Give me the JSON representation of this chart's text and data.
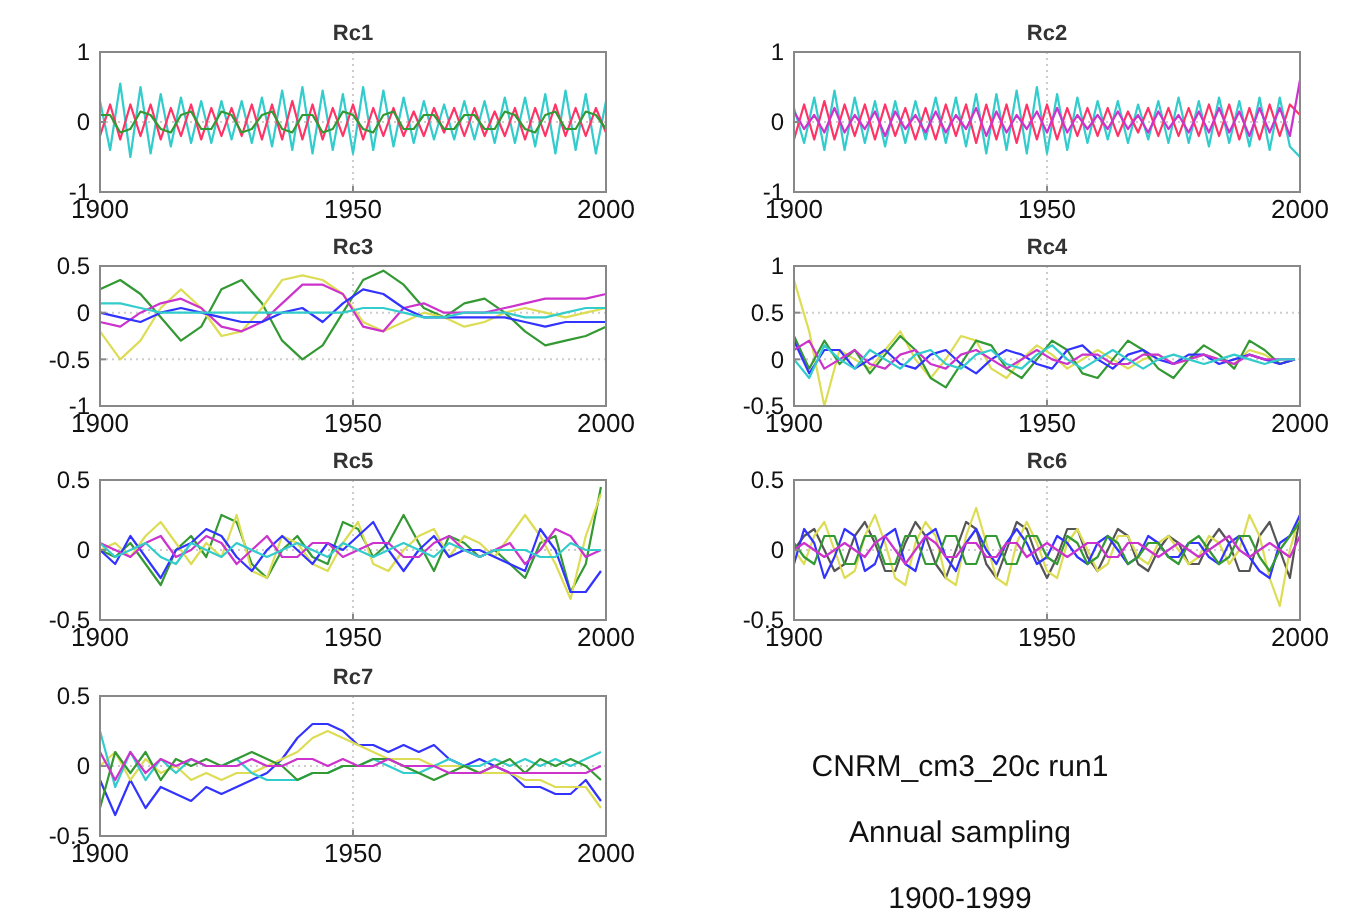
{
  "chart_data": [
    {
      "type": "line",
      "title": "Rc1",
      "xlim": [
        1900,
        2000
      ],
      "xticks": [
        1900,
        1950,
        2000
      ],
      "ylim": [
        -1,
        1
      ],
      "yticks": [
        -1,
        0,
        1
      ],
      "grid": true,
      "x": [
        1900,
        1902,
        1904,
        1906,
        1908,
        1910,
        1912,
        1914,
        1916,
        1918,
        1920,
        1922,
        1924,
        1926,
        1928,
        1930,
        1932,
        1934,
        1936,
        1938,
        1940,
        1942,
        1944,
        1946,
        1948,
        1950,
        1952,
        1954,
        1956,
        1958,
        1960,
        1962,
        1964,
        1966,
        1968,
        1970,
        1972,
        1974,
        1976,
        1978,
        1980,
        1982,
        1984,
        1986,
        1988,
        1990,
        1992,
        1994,
        1996,
        1998,
        2000
      ],
      "series": [
        {
          "color": "#33cccc",
          "values": [
            0.3,
            -0.4,
            0.55,
            -0.5,
            0.5,
            -0.45,
            0.4,
            -0.35,
            0.35,
            -0.3,
            0.3,
            -0.3,
            0.3,
            -0.25,
            0.3,
            -0.3,
            0.35,
            -0.35,
            0.45,
            -0.4,
            0.5,
            -0.45,
            0.45,
            -0.4,
            0.4,
            -0.45,
            0.5,
            -0.4,
            0.45,
            -0.35,
            0.35,
            -0.3,
            0.3,
            -0.25,
            0.25,
            -0.25,
            0.3,
            -0.25,
            0.3,
            -0.3,
            0.35,
            -0.3,
            0.35,
            -0.35,
            0.4,
            -0.45,
            0.45,
            -0.4,
            0.4,
            -0.45,
            0.3
          ]
        },
        {
          "color": "#ff3366",
          "values": [
            -0.2,
            0.25,
            -0.25,
            0.25,
            -0.2,
            0.25,
            -0.25,
            0.2,
            -0.2,
            0.25,
            -0.25,
            0.2,
            -0.2,
            0.2,
            -0.2,
            0.25,
            -0.25,
            0.25,
            -0.25,
            0.3,
            -0.25,
            0.25,
            -0.25,
            0.2,
            -0.2,
            0.25,
            -0.25,
            0.2,
            -0.2,
            0.2,
            -0.2,
            0.15,
            -0.2,
            0.2,
            -0.15,
            0.2,
            -0.2,
            0.2,
            -0.2,
            0.15,
            -0.2,
            0.2,
            -0.25,
            0.2,
            -0.2,
            0.25,
            -0.2,
            0.2,
            -0.2,
            0.2,
            -0.15
          ]
        },
        {
          "color": "#339933",
          "values": [
            0.1,
            0.1,
            -0.15,
            -0.1,
            0.15,
            0.1,
            -0.1,
            -0.15,
            0.1,
            0.15,
            -0.1,
            -0.1,
            0.15,
            0.1,
            -0.15,
            -0.1,
            0.1,
            0.15,
            -0.1,
            -0.15,
            0.1,
            0.1,
            -0.15,
            -0.1,
            0.15,
            0.1,
            -0.1,
            -0.15,
            0.1,
            0.15,
            -0.1,
            -0.1,
            0.1,
            0.1,
            -0.1,
            -0.1,
            0.1,
            0.1,
            -0.1,
            -0.1,
            0.15,
            0.1,
            -0.1,
            -0.15,
            0.1,
            0.15,
            -0.1,
            -0.1,
            0.15,
            0.1,
            -0.1
          ]
        }
      ]
    },
    {
      "type": "line",
      "title": "Rc2",
      "xlim": [
        1900,
        2000
      ],
      "xticks": [
        1900,
        1950,
        2000
      ],
      "ylim": [
        -1,
        1
      ],
      "yticks": [
        -1,
        0,
        1
      ],
      "grid": true,
      "x": [
        1900,
        1902,
        1904,
        1906,
        1908,
        1910,
        1912,
        1914,
        1916,
        1918,
        1920,
        1922,
        1924,
        1926,
        1928,
        1930,
        1932,
        1934,
        1936,
        1938,
        1940,
        1942,
        1944,
        1946,
        1948,
        1950,
        1952,
        1954,
        1956,
        1958,
        1960,
        1962,
        1964,
        1966,
        1968,
        1970,
        1972,
        1974,
        1976,
        1978,
        1980,
        1982,
        1984,
        1986,
        1988,
        1990,
        1992,
        1994,
        1996,
        1998,
        2000
      ],
      "series": [
        {
          "color": "#33cccc",
          "values": [
            0.2,
            -0.3,
            0.35,
            -0.4,
            0.45,
            -0.4,
            0.35,
            -0.3,
            0.3,
            -0.35,
            0.3,
            -0.3,
            0.3,
            -0.25,
            0.35,
            -0.3,
            0.35,
            -0.35,
            0.4,
            -0.45,
            0.4,
            -0.4,
            0.45,
            -0.45,
            0.5,
            -0.45,
            0.4,
            -0.4,
            0.35,
            -0.3,
            0.3,
            -0.25,
            0.3,
            -0.3,
            0.25,
            -0.25,
            0.3,
            -0.3,
            0.35,
            -0.3,
            0.3,
            -0.35,
            0.35,
            -0.3,
            0.3,
            -0.35,
            0.35,
            -0.4,
            0.35,
            -0.35,
            -0.5
          ]
        },
        {
          "color": "#ff3366",
          "values": [
            -0.25,
            0.25,
            -0.25,
            0.3,
            -0.25,
            0.25,
            -0.2,
            0.25,
            -0.25,
            0.25,
            -0.2,
            0.2,
            -0.25,
            0.2,
            -0.25,
            0.25,
            -0.2,
            0.25,
            -0.3,
            0.25,
            -0.25,
            0.25,
            -0.3,
            0.25,
            -0.25,
            0.25,
            -0.25,
            0.2,
            -0.2,
            0.2,
            -0.2,
            0.2,
            -0.2,
            0.15,
            -0.15,
            0.2,
            -0.2,
            0.2,
            -0.2,
            0.2,
            -0.2,
            0.25,
            -0.2,
            0.25,
            -0.25,
            0.2,
            -0.25,
            0.25,
            -0.2,
            0.25,
            0.1
          ]
        },
        {
          "color": "#cc33cc",
          "values": [
            0.15,
            -0.1,
            0.1,
            -0.15,
            0.2,
            -0.15,
            0.1,
            -0.1,
            0.15,
            -0.2,
            0.15,
            -0.1,
            0.1,
            -0.15,
            0.15,
            -0.15,
            0.1,
            -0.1,
            0.2,
            -0.2,
            0.15,
            -0.15,
            0.1,
            -0.1,
            0.15,
            -0.15,
            0.2,
            -0.15,
            0.1,
            -0.1,
            0.1,
            -0.1,
            0.15,
            -0.1,
            0.1,
            -0.15,
            0.15,
            -0.1,
            0.1,
            -0.15,
            0.15,
            -0.15,
            0.2,
            -0.15,
            0.15,
            -0.2,
            0.2,
            -0.15,
            0.2,
            -0.2,
            0.6
          ]
        }
      ]
    },
    {
      "type": "line",
      "title": "Rc3",
      "xlim": [
        1900,
        2000
      ],
      "xticks": [
        1900,
        1950,
        2000
      ],
      "ylim": [
        -1,
        0.5
      ],
      "yticks": [
        -1,
        -0.5,
        0,
        0.5
      ],
      "grid": true,
      "x": [
        1900,
        1904,
        1908,
        1912,
        1916,
        1920,
        1924,
        1928,
        1932,
        1936,
        1940,
        1944,
        1948,
        1952,
        1956,
        1960,
        1964,
        1968,
        1972,
        1976,
        1980,
        1984,
        1988,
        1992,
        1996,
        2000
      ],
      "series": [
        {
          "color": "#339933",
          "values": [
            0.25,
            0.35,
            0.2,
            -0.05,
            -0.3,
            -0.15,
            0.25,
            0.35,
            0.1,
            -0.3,
            -0.5,
            -0.35,
            0,
            0.35,
            0.45,
            0.3,
            0.05,
            -0.05,
            0.1,
            0.15,
            0,
            -0.2,
            -0.35,
            -0.3,
            -0.25,
            -0.15
          ]
        },
        {
          "color": "#dddd55",
          "values": [
            -0.2,
            -0.5,
            -0.3,
            0.05,
            0.25,
            0.05,
            -0.25,
            -0.2,
            0.05,
            0.35,
            0.4,
            0.35,
            0.2,
            -0.1,
            -0.2,
            -0.1,
            0,
            -0.05,
            -0.15,
            -0.1,
            0,
            0.05,
            0,
            -0.05,
            0,
            0.05
          ]
        },
        {
          "color": "#cc33cc",
          "values": [
            -0.1,
            -0.15,
            0,
            0.1,
            0.15,
            0.05,
            -0.15,
            -0.2,
            -0.1,
            0.1,
            0.3,
            0.3,
            0.2,
            -0.15,
            -0.2,
            0.05,
            0.1,
            0,
            0,
            0,
            0.05,
            0.1,
            0.15,
            0.15,
            0.15,
            0.2
          ]
        },
        {
          "color": "#3333ff",
          "values": [
            0,
            -0.05,
            -0.1,
            0,
            0.05,
            0,
            -0.05,
            -0.1,
            -0.1,
            0,
            0.05,
            -0.1,
            0.1,
            0.25,
            0.2,
            0.05,
            -0.05,
            -0.05,
            -0.05,
            -0.05,
            -0.05,
            -0.1,
            -0.15,
            -0.1,
            -0.1,
            -0.1
          ]
        },
        {
          "color": "#33cccc",
          "values": [
            0.1,
            0.1,
            0.05,
            0,
            0,
            0,
            0,
            0,
            0,
            0,
            0,
            0,
            0,
            0.05,
            0.05,
            0,
            -0.05,
            -0.05,
            0,
            0,
            0,
            -0.05,
            -0.05,
            0,
            0.05,
            0.05
          ]
        }
      ]
    },
    {
      "type": "line",
      "title": "Rc4",
      "xlim": [
        1900,
        2000
      ],
      "xticks": [
        1900,
        1950,
        2000
      ],
      "ylim": [
        -0.5,
        1
      ],
      "yticks": [
        -0.5,
        0,
        0.5,
        1
      ],
      "grid": true,
      "x": [
        1900,
        1903,
        1906,
        1909,
        1912,
        1915,
        1918,
        1921,
        1924,
        1927,
        1930,
        1933,
        1936,
        1939,
        1942,
        1945,
        1948,
        1951,
        1954,
        1957,
        1960,
        1963,
        1966,
        1969,
        1972,
        1975,
        1978,
        1981,
        1984,
        1987,
        1990,
        1993,
        1996,
        1999
      ],
      "series": [
        {
          "color": "#dddd55",
          "values": [
            0.85,
            0.3,
            -0.5,
            0.1,
            0,
            -0.1,
            0.1,
            0.3,
            0,
            -0.2,
            0,
            0.25,
            0.2,
            -0.1,
            -0.2,
            0,
            0.15,
            0.05,
            -0.1,
            0,
            0.1,
            0,
            -0.1,
            0,
            0.05,
            -0.05,
            0,
            0.05,
            0,
            -0.05,
            0.1,
            0.05,
            -0.05,
            0
          ]
        },
        {
          "color": "#339933",
          "values": [
            0.25,
            -0.1,
            0.2,
            -0.05,
            0.1,
            -0.15,
            0.05,
            0.25,
            0.1,
            -0.2,
            -0.3,
            -0.05,
            0.2,
            0.15,
            -0.1,
            -0.2,
            0,
            0.2,
            0.1,
            -0.15,
            -0.2,
            0,
            0.2,
            0.1,
            -0.1,
            -0.2,
            0,
            0.15,
            0.05,
            -0.1,
            0.2,
            0.1,
            -0.05,
            0
          ]
        },
        {
          "color": "#3333ff",
          "values": [
            0.2,
            -0.15,
            0.1,
            0.1,
            -0.1,
            0,
            0.1,
            -0.05,
            -0.1,
            0.05,
            0.1,
            -0.05,
            -0.15,
            0,
            0.1,
            0.05,
            -0.05,
            -0.1,
            0.1,
            0.15,
            0,
            -0.1,
            0.05,
            0.1,
            0,
            -0.05,
            0.05,
            0.05,
            -0.05,
            0,
            0.05,
            0,
            -0.05,
            0
          ]
        },
        {
          "color": "#cc33cc",
          "values": [
            0.1,
            0.2,
            -0.1,
            0,
            0.1,
            -0.05,
            -0.1,
            0.05,
            0.1,
            -0.05,
            -0.1,
            0.05,
            0.1,
            0,
            -0.1,
            0,
            0.1,
            0,
            -0.05,
            0.05,
            0.05,
            -0.05,
            -0.05,
            0.05,
            0.05,
            -0.05,
            0,
            0.05,
            0,
            -0.05,
            0.05,
            0,
            0,
            0
          ]
        },
        {
          "color": "#33cccc",
          "values": [
            0,
            -0.2,
            0.15,
            0,
            -0.1,
            0.1,
            0,
            -0.1,
            0.05,
            0.1,
            -0.05,
            -0.1,
            0.05,
            0.1,
            -0.05,
            -0.1,
            0.05,
            0.15,
            0,
            -0.1,
            0,
            0.1,
            0,
            -0.1,
            0,
            0.05,
            0,
            -0.05,
            0,
            0.05,
            0,
            -0.05,
            0,
            0
          ]
        }
      ]
    },
    {
      "type": "line",
      "title": "Rc5",
      "xlim": [
        1900,
        2000
      ],
      "xticks": [
        1900,
        1950,
        2000
      ],
      "ylim": [
        -0.5,
        0.5
      ],
      "yticks": [
        -0.5,
        0,
        0.5
      ],
      "grid": true,
      "x": [
        1900,
        1903,
        1906,
        1909,
        1912,
        1915,
        1918,
        1921,
        1924,
        1927,
        1930,
        1933,
        1936,
        1939,
        1942,
        1945,
        1948,
        1951,
        1954,
        1957,
        1960,
        1963,
        1966,
        1969,
        1972,
        1975,
        1978,
        1981,
        1984,
        1987,
        1990,
        1993,
        1996,
        1999
      ],
      "series": [
        {
          "color": "#339933",
          "values": [
            0,
            -0.05,
            0.05,
            -0.1,
            -0.25,
            0,
            0.1,
            -0.05,
            0.25,
            0.2,
            -0.1,
            -0.2,
            0,
            0.1,
            -0.05,
            -0.1,
            0.2,
            0.15,
            -0.05,
            0.05,
            0.25,
            0.05,
            -0.15,
            0.1,
            0.05,
            -0.05,
            0,
            -0.1,
            -0.2,
            0.05,
            0.1,
            -0.3,
            -0.1,
            0.45
          ]
        },
        {
          "color": "#dddd55",
          "values": [
            0,
            0.05,
            -0.05,
            0.1,
            0.2,
            0.05,
            -0.1,
            0.05,
            -0.05,
            0.25,
            -0.15,
            -0.2,
            0.1,
            0.05,
            -0.1,
            -0.15,
            0.05,
            0.2,
            -0.1,
            -0.15,
            0,
            0.1,
            0.15,
            -0.05,
            0.1,
            0.05,
            -0.05,
            0.1,
            0.25,
            0.1,
            -0.1,
            -0.35,
            0.1,
            0.4
          ]
        },
        {
          "color": "#3333ff",
          "values": [
            0,
            -0.1,
            0.1,
            -0.05,
            -0.2,
            0,
            0.05,
            0.15,
            0.1,
            -0.05,
            -0.15,
            0,
            0.1,
            0,
            -0.1,
            0.05,
            0,
            0.1,
            0.2,
            0,
            -0.15,
            0,
            0.1,
            -0.05,
            0,
            0,
            -0.05,
            -0.1,
            -0.15,
            0.15,
            0,
            -0.3,
            -0.3,
            -0.15
          ]
        },
        {
          "color": "#cc33cc",
          "values": [
            0.05,
            0,
            -0.05,
            0.05,
            0.1,
            -0.05,
            0,
            0.1,
            0.05,
            -0.1,
            0,
            0.1,
            -0.05,
            -0.05,
            0.05,
            0.05,
            -0.05,
            0,
            0.05,
            0.05,
            -0.05,
            -0.05,
            0.05,
            0.1,
            0,
            -0.05,
            0,
            0.05,
            -0.1,
            0,
            0.15,
            0.1,
            -0.05,
            0
          ]
        },
        {
          "color": "#33cccc",
          "values": [
            0.05,
            -0.05,
            0,
            0.05,
            -0.05,
            -0.1,
            0.05,
            0,
            -0.05,
            0.05,
            0,
            -0.05,
            0,
            0.05,
            0,
            -0.05,
            0.05,
            0,
            -0.05,
            0,
            0.05,
            0,
            -0.05,
            0.05,
            0,
            -0.05,
            0,
            0,
            0,
            -0.05,
            -0.05,
            0.05,
            0,
            0
          ]
        }
      ]
    },
    {
      "type": "line",
      "title": "Rc6",
      "xlim": [
        1900,
        2000
      ],
      "xticks": [
        1900,
        1950,
        2000
      ],
      "ylim": [
        -0.5,
        0.5
      ],
      "yticks": [
        -0.5,
        0,
        0.5
      ],
      "grid": true,
      "x": [
        1900,
        1902,
        1904,
        1906,
        1908,
        1910,
        1912,
        1914,
        1916,
        1918,
        1920,
        1922,
        1924,
        1926,
        1928,
        1930,
        1932,
        1934,
        1936,
        1938,
        1940,
        1942,
        1944,
        1946,
        1948,
        1950,
        1952,
        1954,
        1956,
        1958,
        1960,
        1962,
        1964,
        1966,
        1968,
        1970,
        1972,
        1974,
        1976,
        1978,
        1980,
        1982,
        1984,
        1986,
        1988,
        1990,
        1992,
        1994,
        1996,
        1998,
        2000
      ],
      "series": [
        {
          "color": "#555555",
          "values": [
            0,
            0.1,
            0.15,
            0,
            -0.15,
            -0.1,
            0.1,
            0.2,
            0.05,
            -0.15,
            -0.15,
            0.05,
            0.2,
            0.1,
            -0.1,
            -0.2,
            0,
            0.2,
            0.15,
            -0.1,
            -0.2,
            0,
            0.2,
            0.15,
            -0.05,
            -0.2,
            -0.05,
            0.15,
            0.15,
            -0.05,
            -0.15,
            0,
            0.15,
            0.1,
            -0.1,
            -0.15,
            0,
            0.1,
            0.05,
            -0.1,
            -0.1,
            0.05,
            0.15,
            0.05,
            -0.15,
            -0.15,
            0.1,
            0.2,
            0,
            -0.2,
            0.25
          ]
        },
        {
          "color": "#dddd55",
          "values": [
            0,
            -0.1,
            0.1,
            0.2,
            0,
            -0.2,
            -0.15,
            0.1,
            0.25,
            0.05,
            -0.2,
            -0.25,
            0.05,
            0.2,
            0.1,
            -0.2,
            -0.25,
            0.1,
            0.3,
            0.05,
            -0.2,
            -0.25,
            0.05,
            0.2,
            0.05,
            -0.15,
            -0.2,
            0.05,
            0.15,
            0,
            -0.15,
            -0.1,
            0.1,
            0.1,
            -0.05,
            -0.1,
            0.05,
            0.1,
            0,
            -0.1,
            -0.05,
            0.1,
            0.05,
            -0.1,
            0,
            0.25,
            0.1,
            -0.2,
            -0.4,
            0,
            0.25
          ]
        },
        {
          "color": "#3333ff",
          "values": [
            -0.1,
            0.15,
            0.05,
            -0.2,
            -0.05,
            0.15,
            0.1,
            -0.15,
            -0.1,
            0.1,
            0.15,
            -0.1,
            -0.15,
            0.1,
            0.15,
            -0.05,
            -0.15,
            0.05,
            0.15,
            0,
            -0.1,
            0.05,
            0.15,
            0.05,
            -0.1,
            -0.05,
            0.1,
            0.05,
            -0.05,
            -0.1,
            0.05,
            0.1,
            0,
            -0.1,
            -0.05,
            0.1,
            0.05,
            -0.05,
            -0.05,
            0.05,
            0.05,
            -0.05,
            -0.1,
            0.05,
            0.1,
            -0.05,
            -0.15,
            -0.2,
            0.05,
            0.1,
            0.25
          ]
        },
        {
          "color": "#339933",
          "values": [
            0.05,
            -0.05,
            -0.1,
            0.1,
            0.1,
            -0.1,
            -0.1,
            0.1,
            0.1,
            -0.1,
            -0.1,
            0.1,
            0.1,
            -0.1,
            -0.1,
            0.1,
            0.1,
            -0.1,
            -0.1,
            0.1,
            0.1,
            -0.1,
            -0.1,
            0.1,
            0.1,
            -0.05,
            -0.1,
            0.1,
            0.05,
            -0.1,
            -0.05,
            0.1,
            0.05,
            -0.1,
            -0.05,
            0.05,
            0.05,
            -0.05,
            -0.1,
            0.05,
            0.1,
            0,
            -0.1,
            -0.05,
            0.1,
            0.1,
            -0.05,
            -0.15,
            0,
            0.1,
            0.2
          ]
        },
        {
          "color": "#cc33cc",
          "values": [
            0,
            0.05,
            0,
            -0.05,
            0,
            0.05,
            0,
            -0.05,
            0.05,
            0.1,
            0,
            -0.1,
            0,
            0.1,
            0.05,
            -0.05,
            -0.05,
            0.05,
            0.05,
            -0.05,
            -0.05,
            0.05,
            0.05,
            -0.05,
            0,
            0.05,
            0,
            -0.05,
            0,
            0.05,
            0.05,
            -0.05,
            -0.05,
            0.05,
            0.05,
            0,
            -0.05,
            0,
            0.05,
            0,
            -0.05,
            0,
            0.05,
            0.1,
            0,
            -0.05,
            0,
            0.05,
            0,
            -0.05,
            0.1
          ]
        }
      ]
    },
    {
      "type": "line",
      "title": "Rc7",
      "xlim": [
        1900,
        2000
      ],
      "xticks": [
        1900,
        1950,
        2000
      ],
      "ylim": [
        -0.5,
        0.5
      ],
      "yticks": [
        -0.5,
        0,
        0.5
      ],
      "grid": true,
      "x": [
        1900,
        1903,
        1906,
        1909,
        1912,
        1915,
        1918,
        1921,
        1924,
        1927,
        1930,
        1933,
        1936,
        1939,
        1942,
        1945,
        1948,
        1951,
        1954,
        1957,
        1960,
        1963,
        1966,
        1969,
        1972,
        1975,
        1978,
        1981,
        1984,
        1987,
        1990,
        1993,
        1996,
        1999
      ],
      "series": [
        {
          "color": "#3333ff",
          "values": [
            -0.1,
            -0.35,
            -0.1,
            -0.3,
            -0.15,
            -0.2,
            -0.25,
            -0.15,
            -0.2,
            -0.15,
            -0.1,
            -0.05,
            0.05,
            0.2,
            0.3,
            0.3,
            0.25,
            0.15,
            0.15,
            0.1,
            0.15,
            0.1,
            0.15,
            0.05,
            0,
            0.05,
            0,
            -0.05,
            -0.15,
            -0.15,
            -0.2,
            -0.2,
            -0.1,
            -0.25
          ]
        },
        {
          "color": "#dddd55",
          "values": [
            0,
            0.1,
            -0.1,
            0.05,
            -0.05,
            0,
            -0.1,
            -0.05,
            -0.1,
            -0.05,
            -0.05,
            0,
            0.05,
            0.1,
            0.2,
            0.25,
            0.2,
            0.15,
            0.1,
            0.05,
            0.05,
            0.05,
            0,
            0,
            0,
            -0.05,
            -0.05,
            -0.05,
            -0.1,
            -0.1,
            -0.15,
            -0.15,
            -0.15,
            -0.3
          ]
        },
        {
          "color": "#33cccc",
          "values": [
            0.25,
            -0.15,
            0.1,
            -0.1,
            0.05,
            -0.05,
            0.05,
            0,
            0,
            0.05,
            -0.05,
            -0.1,
            -0.1,
            -0.1,
            -0.05,
            -0.05,
            0,
            0,
            0.05,
            0,
            -0.05,
            -0.05,
            0,
            0.05,
            0,
            0,
            0.05,
            0,
            0.05,
            0,
            0.05,
            0,
            0.05,
            0.1
          ]
        },
        {
          "color": "#339933",
          "values": [
            -0.3,
            0.1,
            -0.05,
            0.1,
            -0.1,
            0.05,
            0,
            0.05,
            0,
            0.05,
            0.1,
            0.05,
            0,
            -0.1,
            -0.05,
            -0.05,
            0,
            0,
            0.05,
            0.05,
            0,
            -0.05,
            -0.1,
            -0.05,
            0,
            -0.05,
            0,
            0.05,
            -0.05,
            0.05,
            0,
            0.05,
            0,
            -0.1
          ]
        },
        {
          "color": "#cc33cc",
          "values": [
            0.1,
            -0.1,
            0.1,
            -0.05,
            0.05,
            0,
            0.05,
            0,
            0,
            0,
            0.05,
            0,
            0,
            0.05,
            0.05,
            0,
            0.05,
            0,
            0,
            0.05,
            0,
            0,
            0,
            -0.05,
            -0.05,
            -0.05,
            0,
            -0.05,
            -0.05,
            -0.05,
            -0.05,
            -0.05,
            -0.05,
            0
          ]
        }
      ]
    },
    {
      "type": "other",
      "annotations": [
        "CNRM_cm3_20c run1",
        "Annual sampling",
        "1900-1999"
      ]
    }
  ]
}
